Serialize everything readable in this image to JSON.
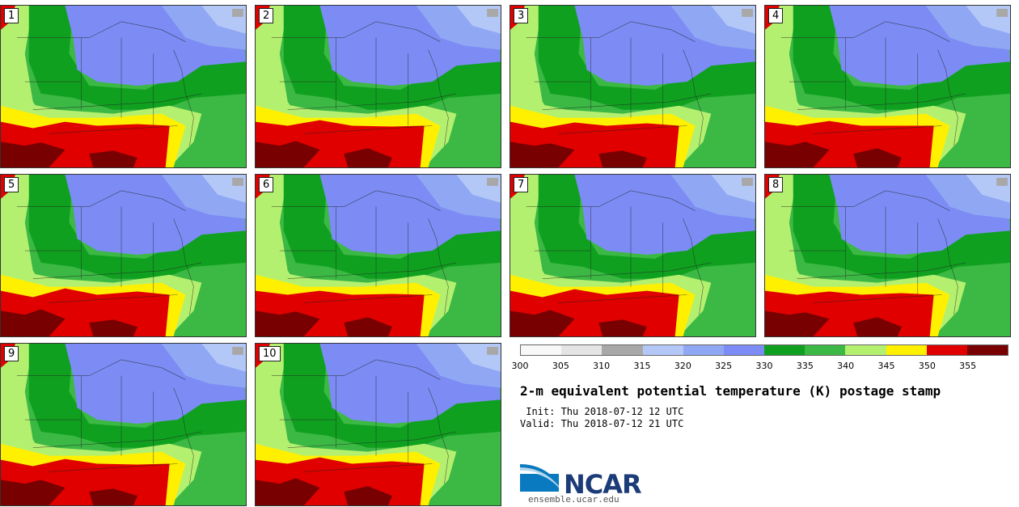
{
  "panels": [
    "1",
    "2",
    "3",
    "4",
    "5",
    "6",
    "7",
    "8",
    "9",
    "10"
  ],
  "legend": {
    "colors": [
      "#f8f8f8",
      "#e4e4e4",
      "#a8a8a8",
      "#b4c8f8",
      "#90a8f4",
      "#7c8cf4",
      "#10a020",
      "#3cb844",
      "#b4f070",
      "#fff000",
      "#e00000",
      "#780000"
    ],
    "ticks": [
      "300",
      "305",
      "310",
      "315",
      "320",
      "325",
      "330",
      "335",
      "340",
      "345",
      "350",
      "355"
    ]
  },
  "title": "2-m equivalent potential temperature (K) postage stamp",
  "init": " Init: Thu 2018-07-12 12 UTC",
  "valid": "Valid: Thu 2018-07-12 21 UTC",
  "logo": {
    "name": "NCAR",
    "url": "ensemble.ucar.edu",
    "color": "#1c3c78"
  }
}
